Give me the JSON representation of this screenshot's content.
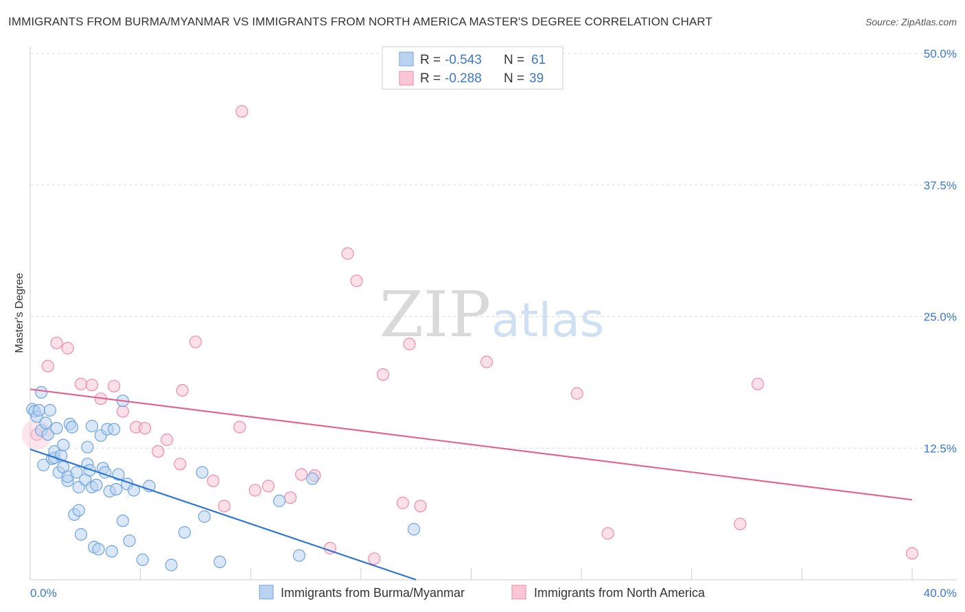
{
  "header": {
    "title": "IMMIGRANTS FROM BURMA/MYANMAR VS IMMIGRANTS FROM NORTH AMERICA MASTER'S DEGREE CORRELATION CHART",
    "source": "Source: ZipAtlas.com"
  },
  "watermark": {
    "zip": "ZIP",
    "atlas": "atlas"
  },
  "legend": {
    "rows": [
      {
        "r_label": "R =",
        "r_value": "-0.543",
        "n_label": "N =",
        "n_value": "61"
      },
      {
        "r_label": "R =",
        "r_value": "-0.288",
        "n_label": "N =",
        "n_value": "39"
      }
    ]
  },
  "chart_data": {
    "type": "scatter",
    "title": "IMMIGRANTS FROM BURMA/MYANMAR VS IMMIGRANTS FROM NORTH AMERICA MASTER'S DEGREE CORRELATION CHART",
    "xlabel": "",
    "ylabel": "Master's Degree",
    "xlim": [
      0,
      40
    ],
    "ylim": [
      0,
      50
    ],
    "x_tick_labels": [
      "0.0%",
      "40.0%"
    ],
    "y_tick_values": [
      12.5,
      25,
      37.5,
      50
    ],
    "y_tick_labels": [
      "12.5%",
      "25.0%",
      "37.5%",
      "50.0%"
    ],
    "grid": true,
    "series": [
      {
        "name": "Immigrants from Burma/Myanmar",
        "color": "#6fa3e0",
        "fill": "#b9d3f1",
        "line_color": "#2f76d1",
        "r": -0.543,
        "n": 61,
        "trend": {
          "x0": 0,
          "y0": 12.4,
          "x1": 17.5,
          "y1": 0
        },
        "points": [
          [
            0.1,
            16.2
          ],
          [
            0.2,
            16.0
          ],
          [
            0.3,
            15.5
          ],
          [
            0.4,
            16.1
          ],
          [
            0.5,
            17.8
          ],
          [
            0.5,
            14.2
          ],
          [
            0.6,
            10.9
          ],
          [
            0.7,
            14.9
          ],
          [
            0.8,
            13.8
          ],
          [
            0.9,
            16.1
          ],
          [
            1.0,
            11.5
          ],
          [
            1.1,
            11.6
          ],
          [
            1.1,
            12.2
          ],
          [
            1.2,
            14.4
          ],
          [
            1.3,
            10.2
          ],
          [
            1.4,
            11.8
          ],
          [
            1.5,
            12.8
          ],
          [
            1.5,
            10.7
          ],
          [
            1.7,
            9.4
          ],
          [
            1.7,
            9.8
          ],
          [
            1.8,
            14.8
          ],
          [
            1.9,
            14.5
          ],
          [
            2.0,
            6.2
          ],
          [
            2.1,
            10.2
          ],
          [
            2.2,
            6.6
          ],
          [
            2.2,
            8.8
          ],
          [
            2.3,
            4.3
          ],
          [
            2.5,
            9.5
          ],
          [
            2.6,
            11.0
          ],
          [
            2.6,
            12.6
          ],
          [
            2.7,
            10.4
          ],
          [
            2.8,
            8.8
          ],
          [
            2.8,
            14.6
          ],
          [
            2.9,
            3.1
          ],
          [
            3.0,
            9.0
          ],
          [
            3.1,
            2.9
          ],
          [
            3.2,
            13.7
          ],
          [
            3.3,
            10.6
          ],
          [
            3.4,
            10.2
          ],
          [
            3.5,
            14.3
          ],
          [
            3.6,
            8.4
          ],
          [
            3.7,
            2.7
          ],
          [
            3.8,
            14.3
          ],
          [
            3.9,
            8.6
          ],
          [
            4.0,
            10.0
          ],
          [
            4.2,
            5.6
          ],
          [
            4.2,
            17.0
          ],
          [
            4.4,
            9.1
          ],
          [
            4.5,
            3.7
          ],
          [
            4.7,
            8.5
          ],
          [
            5.1,
            1.9
          ],
          [
            5.4,
            8.9
          ],
          [
            6.4,
            1.4
          ],
          [
            7.0,
            4.5
          ],
          [
            7.8,
            10.2
          ],
          [
            7.9,
            6.0
          ],
          [
            8.6,
            1.7
          ],
          [
            11.3,
            7.5
          ],
          [
            12.2,
            2.3
          ],
          [
            12.8,
            9.6
          ],
          [
            17.4,
            4.8
          ]
        ]
      },
      {
        "name": "Immigrants from North America",
        "color": "#f08aaa",
        "fill": "#f9c6d5",
        "line_color": "#e2658f",
        "r": -0.288,
        "n": 39,
        "trend": {
          "x0": 0,
          "y0": 18.1,
          "x1": 40,
          "y1": 7.6
        },
        "points": [
          [
            0.3,
            13.8
          ],
          [
            0.8,
            20.3
          ],
          [
            1.2,
            22.5
          ],
          [
            1.7,
            22.0
          ],
          [
            2.3,
            18.6
          ],
          [
            2.8,
            18.5
          ],
          [
            3.2,
            17.2
          ],
          [
            3.8,
            18.4
          ],
          [
            4.2,
            16.0
          ],
          [
            4.8,
            14.5
          ],
          [
            5.2,
            14.4
          ],
          [
            5.8,
            12.2
          ],
          [
            6.2,
            13.3
          ],
          [
            6.8,
            11.0
          ],
          [
            6.9,
            18.0
          ],
          [
            7.5,
            22.6
          ],
          [
            8.3,
            9.4
          ],
          [
            8.8,
            7.0
          ],
          [
            9.5,
            14.5
          ],
          [
            9.6,
            44.5
          ],
          [
            10.2,
            8.5
          ],
          [
            10.8,
            8.9
          ],
          [
            11.8,
            7.8
          ],
          [
            12.3,
            10.0
          ],
          [
            12.9,
            9.9
          ],
          [
            13.6,
            3.0
          ],
          [
            14.4,
            31.0
          ],
          [
            14.8,
            28.4
          ],
          [
            15.6,
            2.0
          ],
          [
            16.0,
            19.5
          ],
          [
            16.9,
            7.3
          ],
          [
            17.2,
            22.4
          ],
          [
            17.7,
            7.0
          ],
          [
            20.7,
            20.7
          ],
          [
            24.8,
            17.7
          ],
          [
            26.2,
            4.4
          ],
          [
            32.2,
            5.3
          ],
          [
            33.0,
            18.6
          ],
          [
            40.0,
            2.5
          ]
        ]
      }
    ]
  },
  "bottom_legend": {
    "items": [
      {
        "label": "Immigrants from Burma/Myanmar"
      },
      {
        "label": "Immigrants from North America"
      }
    ]
  }
}
